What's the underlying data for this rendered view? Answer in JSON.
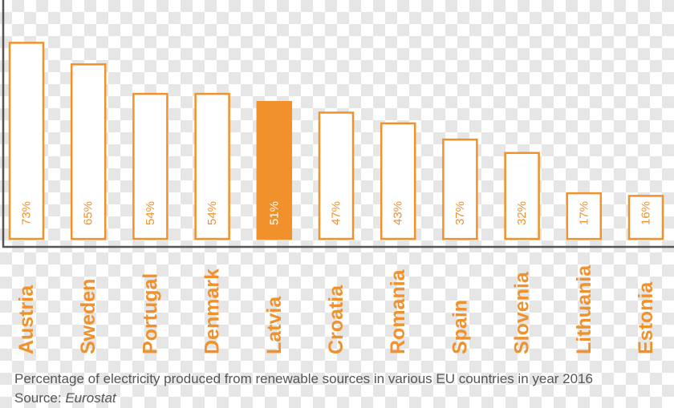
{
  "chart_data": {
    "type": "bar",
    "categories": [
      "Austria",
      "Sweden",
      "Portugal",
      "Denmark",
      "Latvia",
      "Croatia",
      "Romania",
      "Spain",
      "Slovenia",
      "Lithuania",
      "Estonia"
    ],
    "values": [
      73,
      65,
      54,
      54,
      51,
      47,
      43,
      37,
      32,
      17,
      16
    ],
    "value_labels": [
      "73%",
      "65%",
      "54%",
      "54%",
      "51%",
      "47%",
      "43%",
      "37%",
      "32%",
      "17%",
      "16%"
    ],
    "highlight": "Latvia",
    "ylim": [
      0,
      80
    ],
    "grid": false,
    "title": "",
    "xlabel": "",
    "ylabel": ""
  },
  "caption": {
    "text": "Percentage of electricity produced from renewable sources in various EU countries in year 2016",
    "source_label": "Source: ",
    "source_name": "Eurostat"
  },
  "colors": {
    "accent": "#F0912C",
    "bar_fill": "#FFFFFF",
    "axis": "#555555",
    "caption_text": "#555555",
    "highlight_text": "#FFFFFF"
  }
}
